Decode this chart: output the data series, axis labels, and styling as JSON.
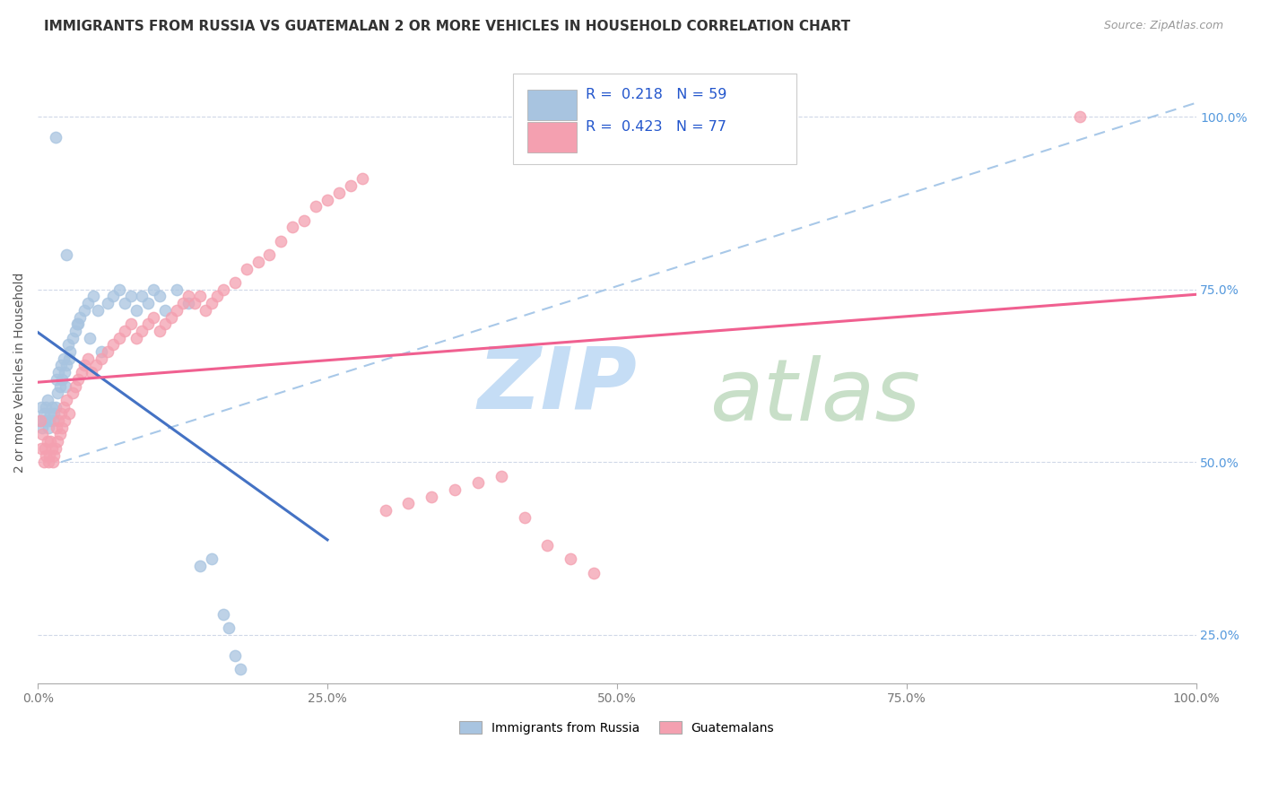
{
  "title": "IMMIGRANTS FROM RUSSIA VS GUATEMALAN 2 OR MORE VEHICLES IN HOUSEHOLD CORRELATION CHART",
  "source": "Source: ZipAtlas.com",
  "ylabel": "2 or more Vehicles in Household",
  "xlim": [
    0.0,
    1.0
  ],
  "ylim": [
    0.18,
    1.08
  ],
  "ytick_labels": [
    "25.0%",
    "50.0%",
    "75.0%",
    "100.0%"
  ],
  "ytick_values": [
    0.25,
    0.5,
    0.75,
    1.0
  ],
  "xtick_labels": [
    "0.0%",
    "25.0%",
    "50.0%",
    "75.0%",
    "100.0%"
  ],
  "xtick_values": [
    0.0,
    0.25,
    0.5,
    0.75,
    1.0
  ],
  "legend_russia_label": "Immigrants from Russia",
  "legend_guatemalan_label": "Guatemalans",
  "russia_R": "0.218",
  "russia_N": "59",
  "guatemalan_R": "0.423",
  "guatemalan_N": "77",
  "russia_color": "#a8c4e0",
  "guatemalan_color": "#f4a0b0",
  "russia_line_color": "#4472c4",
  "guatemalan_line_color": "#f06090",
  "trend_line_color": "#a8c8e8",
  "watermark_zip": "ZIP",
  "watermark_atlas": "atlas",
  "watermark_color_zip": "#c8ddf0",
  "watermark_color_atlas": "#d0e8c0",
  "background_color": "#ffffff",
  "title_fontsize": 11,
  "source_fontsize": 9,
  "russia_scatter_x": [
    0.002,
    0.003,
    0.004,
    0.005,
    0.006,
    0.007,
    0.008,
    0.009,
    0.01,
    0.011,
    0.012,
    0.013,
    0.014,
    0.015,
    0.016,
    0.017,
    0.018,
    0.019,
    0.02,
    0.021,
    0.022,
    0.023,
    0.024,
    0.025,
    0.026,
    0.027,
    0.028,
    0.03,
    0.032,
    0.034,
    0.036,
    0.04,
    0.043,
    0.048,
    0.052,
    0.06,
    0.065,
    0.07,
    0.075,
    0.08,
    0.085,
    0.09,
    0.095,
    0.1,
    0.105,
    0.11,
    0.12,
    0.13,
    0.14,
    0.15,
    0.16,
    0.165,
    0.17,
    0.175,
    0.035,
    0.045,
    0.055,
    0.015,
    0.025
  ],
  "russia_scatter_y": [
    0.56,
    0.58,
    0.55,
    0.57,
    0.56,
    0.58,
    0.59,
    0.55,
    0.56,
    0.57,
    0.58,
    0.56,
    0.57,
    0.58,
    0.62,
    0.6,
    0.63,
    0.61,
    0.64,
    0.62,
    0.65,
    0.63,
    0.61,
    0.64,
    0.67,
    0.65,
    0.66,
    0.68,
    0.69,
    0.7,
    0.71,
    0.72,
    0.73,
    0.74,
    0.72,
    0.73,
    0.74,
    0.75,
    0.73,
    0.74,
    0.72,
    0.74,
    0.73,
    0.75,
    0.74,
    0.72,
    0.75,
    0.73,
    0.35,
    0.36,
    0.28,
    0.26,
    0.22,
    0.2,
    0.7,
    0.68,
    0.66,
    0.97,
    0.8
  ],
  "guatemalan_scatter_x": [
    0.002,
    0.003,
    0.004,
    0.005,
    0.006,
    0.007,
    0.008,
    0.009,
    0.01,
    0.011,
    0.012,
    0.013,
    0.014,
    0.015,
    0.016,
    0.017,
    0.018,
    0.019,
    0.02,
    0.021,
    0.022,
    0.023,
    0.025,
    0.027,
    0.03,
    0.032,
    0.035,
    0.038,
    0.04,
    0.043,
    0.046,
    0.05,
    0.055,
    0.06,
    0.065,
    0.07,
    0.075,
    0.08,
    0.085,
    0.09,
    0.095,
    0.1,
    0.105,
    0.11,
    0.115,
    0.12,
    0.125,
    0.13,
    0.135,
    0.14,
    0.145,
    0.15,
    0.155,
    0.16,
    0.17,
    0.18,
    0.19,
    0.2,
    0.21,
    0.22,
    0.23,
    0.24,
    0.25,
    0.26,
    0.27,
    0.28,
    0.3,
    0.32,
    0.34,
    0.36,
    0.38,
    0.4,
    0.42,
    0.44,
    0.46,
    0.48,
    0.9
  ],
  "guatemalan_scatter_y": [
    0.56,
    0.52,
    0.54,
    0.5,
    0.52,
    0.51,
    0.53,
    0.5,
    0.51,
    0.53,
    0.52,
    0.5,
    0.51,
    0.52,
    0.55,
    0.53,
    0.56,
    0.54,
    0.57,
    0.55,
    0.58,
    0.56,
    0.59,
    0.57,
    0.6,
    0.61,
    0.62,
    0.63,
    0.64,
    0.65,
    0.63,
    0.64,
    0.65,
    0.66,
    0.67,
    0.68,
    0.69,
    0.7,
    0.68,
    0.69,
    0.7,
    0.71,
    0.69,
    0.7,
    0.71,
    0.72,
    0.73,
    0.74,
    0.73,
    0.74,
    0.72,
    0.73,
    0.74,
    0.75,
    0.76,
    0.78,
    0.79,
    0.8,
    0.82,
    0.84,
    0.85,
    0.87,
    0.88,
    0.89,
    0.9,
    0.91,
    0.43,
    0.44,
    0.45,
    0.46,
    0.47,
    0.48,
    0.42,
    0.38,
    0.36,
    0.34,
    1.0
  ]
}
